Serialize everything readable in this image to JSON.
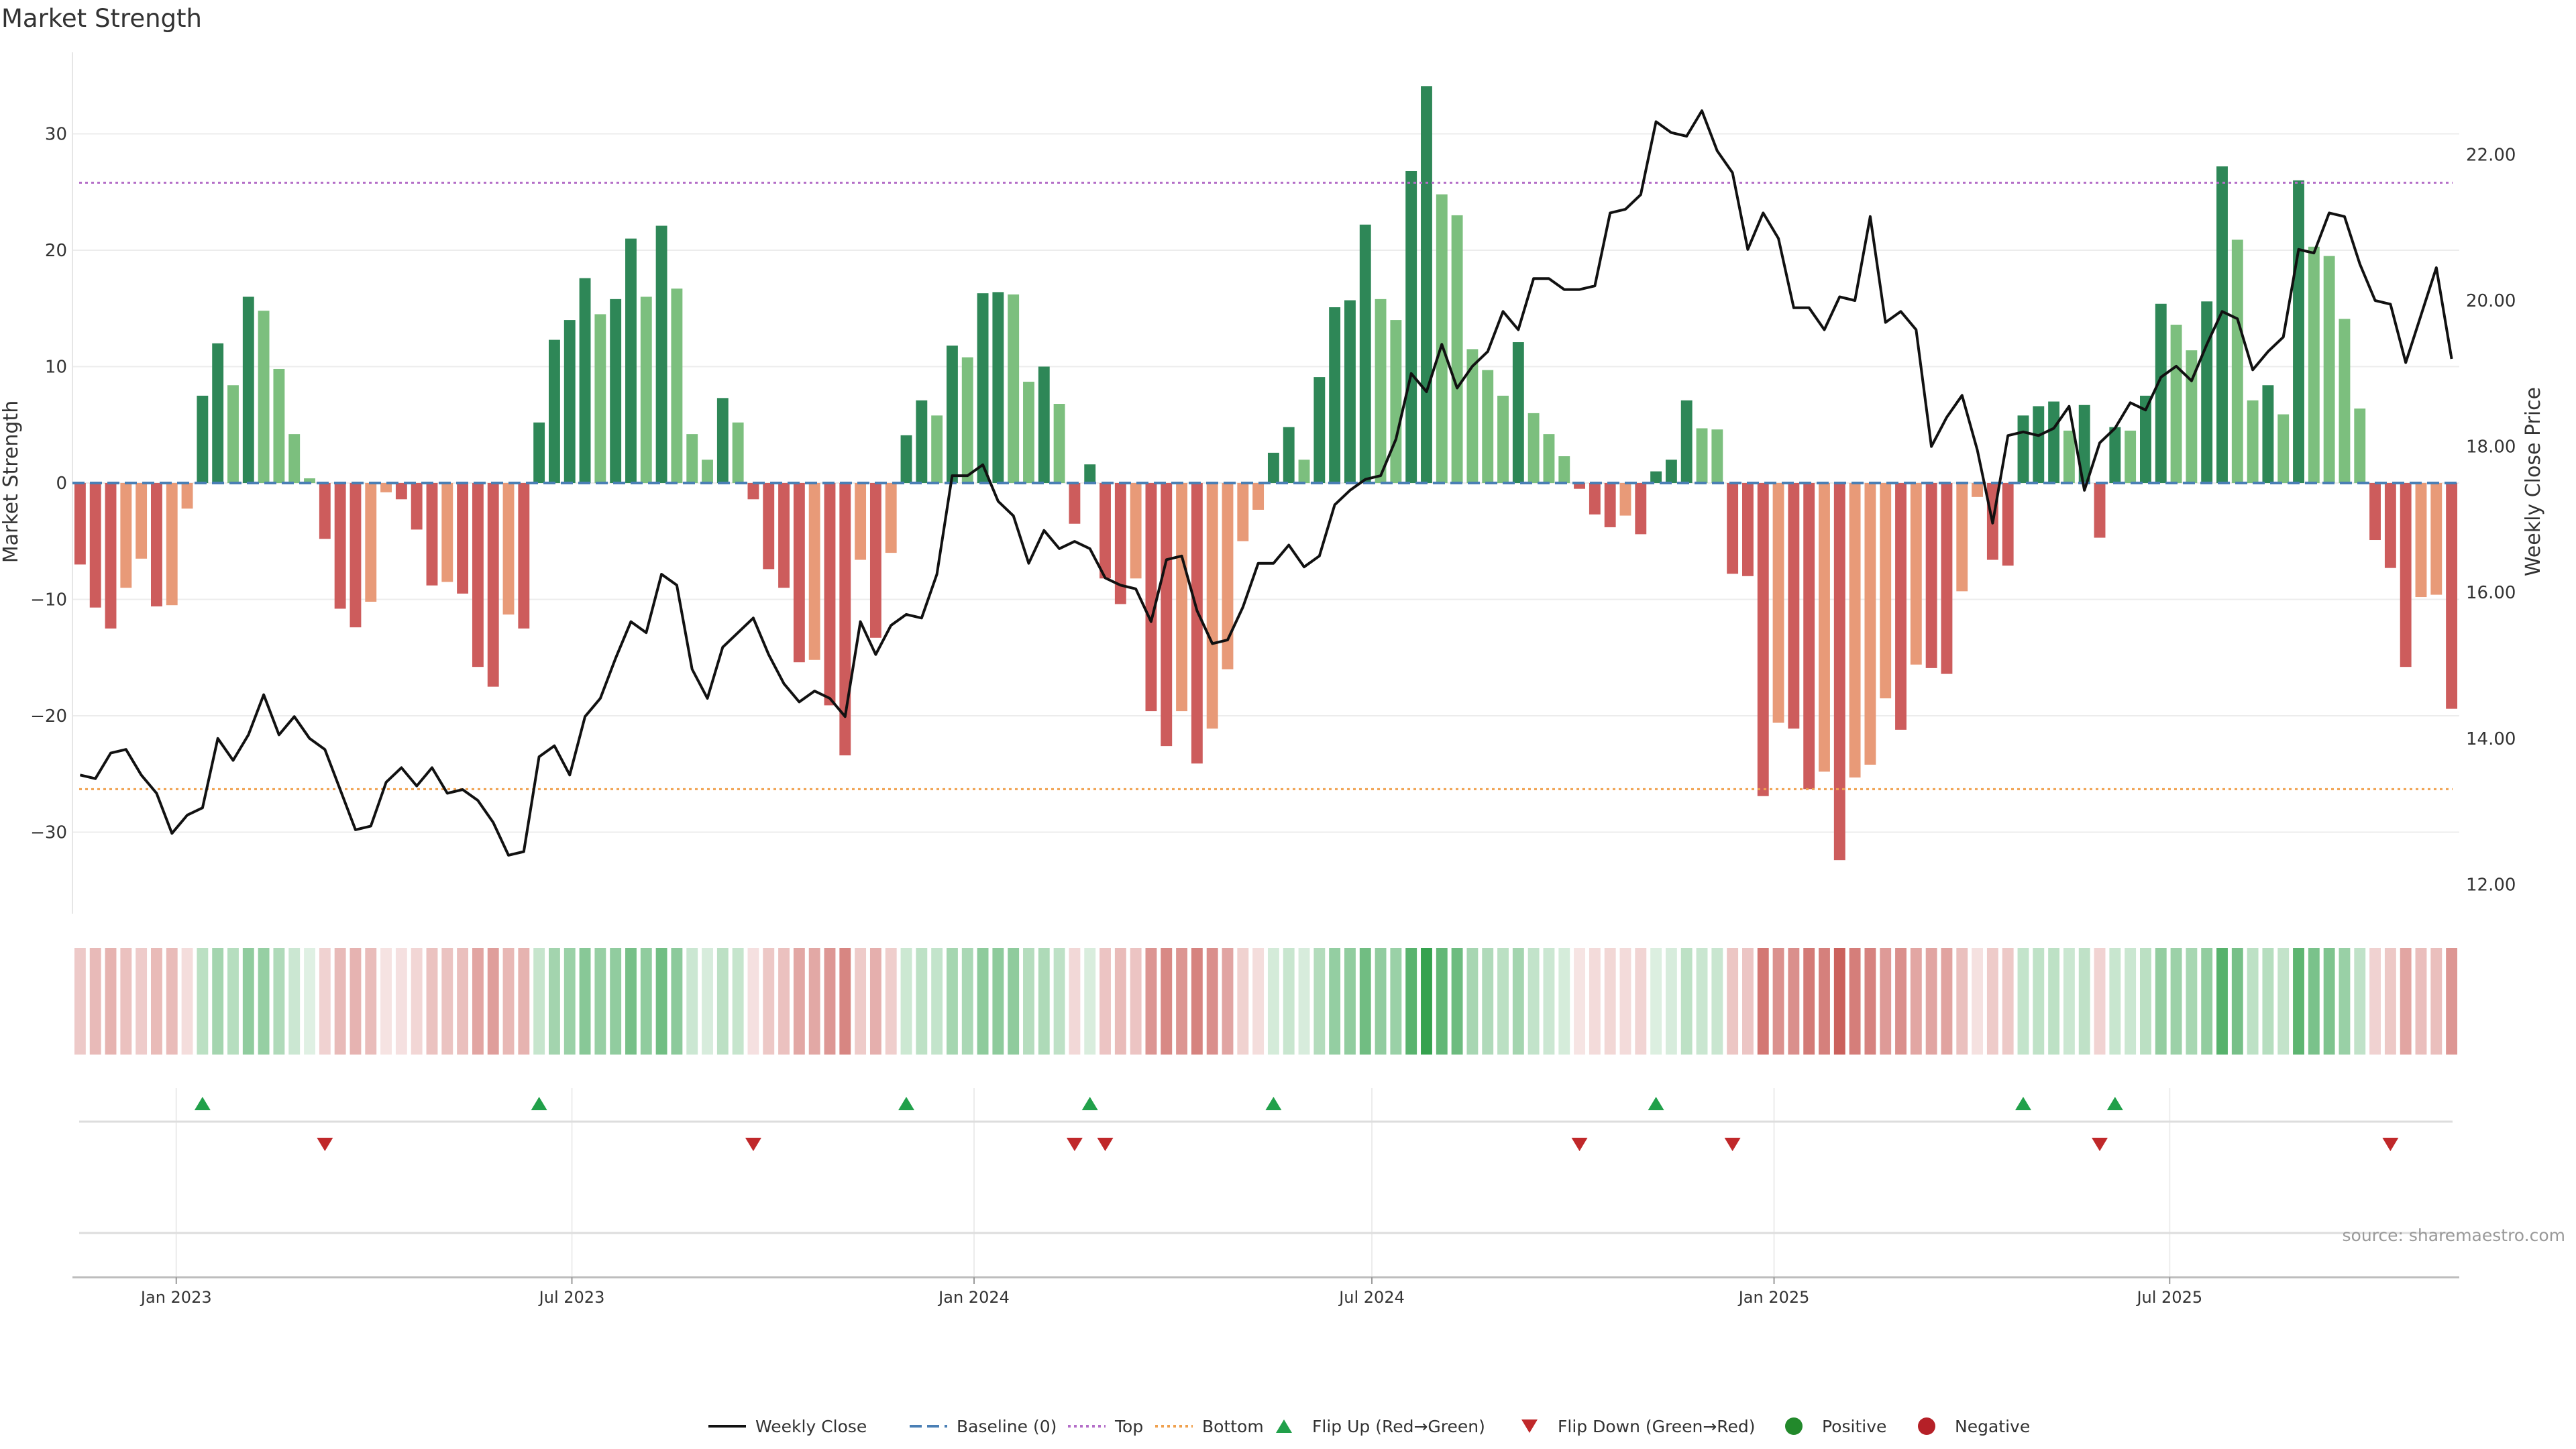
{
  "chart_data": {
    "type": "bar",
    "title": "Market Strength",
    "ylabel_left": "Market Strength",
    "ylabel_right": "Weekly Close Price",
    "source": "source: sharemaestro.com",
    "ylim_left": [
      -37,
      37
    ],
    "ylim_right": [
      11.6,
      23.4
    ],
    "yticks_left": [
      -30,
      -20,
      -10,
      0,
      10,
      20,
      30
    ],
    "yticks_left_labels": [
      "−30",
      "−20",
      "−10",
      "0",
      "10",
      "20",
      "30"
    ],
    "yticks_right": [
      12,
      14,
      16,
      18,
      20,
      22
    ],
    "yticks_right_labels": [
      "12.00",
      "14.00",
      "16.00",
      "18.00",
      "20.00",
      "22.00"
    ],
    "top_level": 25.8,
    "bottom_level": -26.3,
    "start_date": "2022-11-18",
    "bar_interval_days": 7,
    "x_ticks": [
      {
        "date": "2023-01-01",
        "label": "Jan 2023"
      },
      {
        "date": "2023-07-01",
        "label": "Jul 2023"
      },
      {
        "date": "2024-01-01",
        "label": "Jan 2024"
      },
      {
        "date": "2024-07-01",
        "label": "Jul 2024"
      },
      {
        "date": "2025-01-01",
        "label": "Jan 2025"
      },
      {
        "date": "2025-07-01",
        "label": "Jul 2025"
      }
    ],
    "strength": [
      -7,
      -10.7,
      -12.5,
      -9,
      -6.5,
      -10.6,
      -10.5,
      -2.2,
      7.5,
      12,
      8.4,
      16,
      14.8,
      9.8,
      4.2,
      0.4,
      -4.8,
      -10.8,
      -12.4,
      -10.2,
      -0.8,
      -1.4,
      -4,
      -8.8,
      -8.5,
      -9.5,
      -15.8,
      -17.5,
      -11.3,
      -12.5,
      5.2,
      12.3,
      14,
      17.6,
      14.5,
      15.8,
      21,
      16,
      22.1,
      16.7,
      4.2,
      2,
      7.3,
      5.2,
      -1.4,
      -7.4,
      -9,
      -15.4,
      -15.2,
      -19.1,
      -23.4,
      -6.6,
      -13.3,
      -6,
      4.1,
      7.1,
      5.8,
      11.8,
      10.8,
      16.3,
      16.4,
      16.2,
      8.7,
      10,
      6.8,
      -3.5,
      1.6,
      -8.2,
      -10.4,
      -8.2,
      -19.6,
      -22.6,
      -19.6,
      -24.1,
      -21.1,
      -16,
      -5,
      -2.3,
      2.6,
      4.8,
      2,
      9.1,
      15.1,
      15.7,
      22.2,
      15.8,
      14,
      26.8,
      34.1,
      24.8,
      23,
      11.5,
      9.7,
      7.5,
      12.1,
      6,
      4.2,
      2.3,
      -0.5,
      -2.7,
      -3.8,
      -2.8,
      -4.4,
      1,
      2,
      7.1,
      4.7,
      4.6,
      -7.8,
      -8,
      -26.9,
      -20.6,
      -21.1,
      -26.3,
      -24.8,
      -32.4,
      -25.3,
      -24.2,
      -18.5,
      -21.2,
      -15.6,
      -15.9,
      -16.4,
      -9.3,
      -1.2,
      -6.6,
      -7.1,
      5.8,
      6.6,
      7,
      4.5,
      6.7,
      -4.7,
      4.8,
      4.5,
      7.5,
      15.4,
      13.6,
      11.4,
      15.6,
      27.2,
      20.9,
      7.1,
      8.4,
      5.9,
      26,
      20.3,
      19.5,
      14.1,
      6.4,
      -4.9,
      -7.3,
      -15.8,
      -9.8,
      -9.6,
      -19.4
    ],
    "close": [
      13.5,
      13.45,
      13.8,
      13.85,
      13.5,
      13.25,
      12.7,
      12.95,
      13.05,
      14,
      13.7,
      14.05,
      14.6,
      14.05,
      14.3,
      14,
      13.85,
      13.3,
      12.75,
      12.8,
      13.4,
      13.6,
      13.35,
      13.6,
      13.25,
      13.3,
      13.15,
      12.85,
      12.4,
      12.45,
      13.75,
      13.9,
      13.5,
      14.3,
      14.55,
      15.1,
      15.6,
      15.45,
      16.25,
      16.1,
      14.95,
      14.55,
      15.25,
      15.45,
      15.65,
      15.15,
      14.75,
      14.5,
      14.65,
      14.55,
      14.3,
      15.6,
      15.15,
      15.55,
      15.7,
      15.65,
      16.25,
      17.6,
      17.6,
      17.75,
      17.25,
      17.05,
      16.4,
      16.85,
      16.6,
      16.7,
      16.6,
      16.2,
      16.1,
      16.05,
      15.6,
      16.45,
      16.5,
      15.75,
      15.3,
      15.35,
      15.8,
      16.4,
      16.4,
      16.65,
      16.35,
      16.5,
      17.2,
      17.4,
      17.55,
      17.6,
      18.1,
      19,
      18.75,
      19.4,
      18.8,
      19.1,
      19.3,
      19.85,
      19.6,
      20.3,
      20.3,
      20.15,
      20.15,
      20.2,
      21.2,
      21.25,
      21.45,
      22.45,
      22.3,
      22.25,
      22.6,
      22.05,
      21.75,
      20.7,
      21.2,
      20.85,
      19.9,
      19.9,
      19.6,
      20.05,
      20,
      21.15,
      19.7,
      19.85,
      19.6,
      18,
      18.4,
      18.7,
      17.95,
      16.95,
      18.15,
      18.2,
      18.15,
      18.25,
      18.55,
      17.4,
      18.05,
      18.25,
      18.6,
      18.5,
      18.95,
      19.1,
      18.9,
      19.4,
      19.85,
      19.75,
      19.05,
      19.3,
      19.5,
      20.7,
      20.65,
      21.2,
      21.15,
      20.5,
      20,
      19.95,
      19.15,
      19.8,
      20.45,
      19.2
    ],
    "flip_up_indices": [
      8,
      30,
      54,
      66,
      78,
      103,
      127,
      133
    ],
    "flip_down_indices": [
      16,
      44,
      65,
      67,
      98,
      108,
      132,
      151
    ],
    "colors": {
      "pos_strong": "#2e8757",
      "pos_weak": "#7cbf7e",
      "neg_strong": "#cd5c5c",
      "neg_weak": "#e89a78",
      "line": "#111111",
      "baseline": "#4a7fb5",
      "top": "#b46ec8",
      "bottom": "#f0a14e",
      "flip_up": "#21a04a",
      "flip_down": "#c0282a",
      "positive": "#22892b",
      "negative": "#b52027",
      "grid": "#ececec",
      "axis_text": "#333333"
    },
    "legend": [
      {
        "label": "Weekly Close",
        "kind": "line",
        "color": "#111111",
        "dash": ""
      },
      {
        "label": "Baseline (0)",
        "kind": "line",
        "color": "#4a7fb5",
        "dash": "18 8"
      },
      {
        "label": "Top",
        "kind": "line",
        "color": "#b46ec8",
        "dash": "4 5"
      },
      {
        "label": "Bottom",
        "kind": "line",
        "color": "#f0a14e",
        "dash": "4 5"
      },
      {
        "label": "Flip Up (Red→Green)",
        "kind": "up",
        "color": "#21a04a"
      },
      {
        "label": "Flip Down (Green→Red)",
        "kind": "down",
        "color": "#c0282a"
      },
      {
        "label": "Positive",
        "kind": "dot",
        "color": "#22892b"
      },
      {
        "label": "Negative",
        "kind": "dot",
        "color": "#b52027"
      }
    ],
    "legend_placement": "bottom-center",
    "grid": true
  }
}
